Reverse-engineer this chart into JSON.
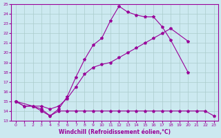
{
  "xlabel": "Windchill (Refroidissement éolien,°C)",
  "xlim": [
    -0.5,
    23.5
  ],
  "ylim": [
    13,
    25
  ],
  "xticks": [
    0,
    1,
    2,
    3,
    4,
    5,
    6,
    7,
    8,
    9,
    10,
    11,
    12,
    13,
    14,
    15,
    16,
    17,
    18,
    19,
    20,
    21,
    22,
    23
  ],
  "yticks": [
    13,
    14,
    15,
    16,
    17,
    18,
    19,
    20,
    21,
    22,
    23,
    24,
    25
  ],
  "bg_color": "#cce9f0",
  "line_color": "#990099",
  "grid_color": "#aacccc",
  "lines": [
    {
      "x": [
        0,
        1,
        2,
        3,
        4,
        5,
        6,
        7,
        8,
        9,
        10,
        11,
        12,
        13,
        14,
        15,
        16,
        17,
        18,
        20
      ],
      "y": [
        15.0,
        14.5,
        14.5,
        14.2,
        13.5,
        14.2,
        15.5,
        17.5,
        19.3,
        20.8,
        21.5,
        23.3,
        24.8,
        24.2,
        23.9,
        23.7,
        23.7,
        22.7,
        21.3,
        18.0
      ]
    },
    {
      "x": [
        0,
        2,
        3,
        4,
        5,
        6,
        7,
        8,
        9,
        10,
        11,
        12,
        13,
        14,
        15,
        16,
        17,
        18,
        20
      ],
      "y": [
        15.0,
        14.5,
        14.5,
        14.2,
        14.5,
        15.3,
        16.5,
        17.8,
        18.5,
        18.8,
        19.0,
        19.5,
        20.0,
        20.5,
        21.0,
        21.5,
        22.0,
        22.5,
        21.2
      ]
    },
    {
      "x": [
        0,
        1,
        2,
        3,
        4,
        5,
        6,
        7,
        8,
        9,
        10,
        11,
        12,
        13,
        14,
        15,
        16,
        17,
        18,
        19,
        20,
        21,
        22,
        23
      ],
      "y": [
        15.0,
        14.5,
        14.5,
        14.0,
        13.5,
        14.0,
        14.0,
        14.0,
        14.0,
        14.0,
        14.0,
        14.0,
        14.0,
        14.0,
        14.0,
        14.0,
        14.0,
        14.0,
        14.0,
        14.0,
        14.0,
        14.0,
        14.0,
        13.5
      ]
    }
  ]
}
